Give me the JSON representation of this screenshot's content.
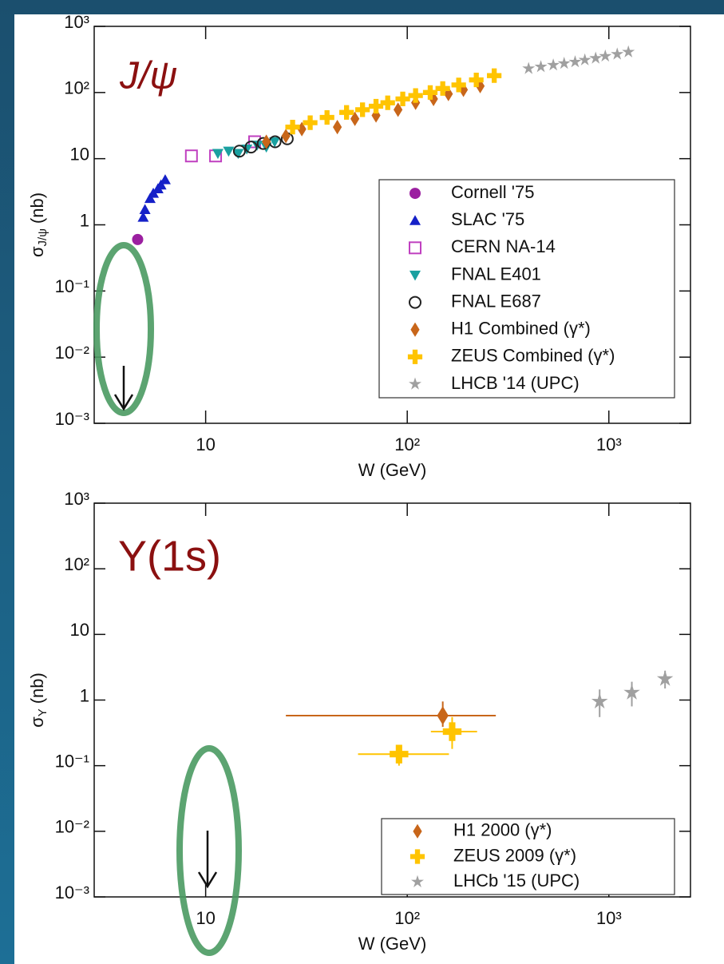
{
  "chart_data": [
    {
      "type": "scatter",
      "title": "J/ψ",
      "xlabel": "W (GeV)",
      "ylabel": "σ",
      "ylabel_subscript": "J/ψ",
      "ylabel_unit": "(nb)",
      "log_x": true,
      "log_y": true,
      "legend": "lower right",
      "xlim": [
        2.8,
        2540
      ],
      "ylim": [
        0.001,
        1000
      ],
      "xticks": [
        10,
        {
          "value": 100,
          "label": "10²"
        },
        {
          "value": 1000,
          "label": "10³"
        }
      ],
      "yticks": [
        {
          "value": 0.001,
          "label": "10⁻³"
        },
        {
          "value": 0.01,
          "label": "10⁻²"
        },
        {
          "value": 0.1,
          "label": "10⁻¹"
        },
        1,
        10,
        {
          "value": 100,
          "label": "10²"
        },
        {
          "value": 1000,
          "label": "10³"
        }
      ],
      "series": [
        {
          "name": "Cornell '75",
          "color": "#9b1fa0",
          "marker": "circle",
          "x": [
            4.6
          ],
          "values": [
            0.6
          ]
        },
        {
          "name": "SLAC '75",
          "color": "#1520c8",
          "marker": "triangle-up",
          "x": [
            4.9,
            5.0,
            5.3,
            5.5,
            5.8,
            6.0,
            6.3
          ],
          "values": [
            1.3,
            1.7,
            2.5,
            3.0,
            3.5,
            4.0,
            4.8
          ]
        },
        {
          "name": "CERN NA-14",
          "color": "#c040c0",
          "marker": "square-open",
          "x": [
            8.5,
            11.2,
            17.5
          ],
          "values": [
            11,
            11,
            18
          ]
        },
        {
          "name": "FNAL E401",
          "color": "#1aa0a0",
          "marker": "triangle-down",
          "x": [
            11.5,
            13,
            14.5,
            16,
            18,
            20,
            22
          ],
          "values": [
            12,
            13,
            12,
            14,
            16,
            15,
            18
          ]
        },
        {
          "name": "FNAL E687",
          "color": "#222222",
          "marker": "circle-open",
          "x": [
            14.7,
            16.8,
            19.3,
            22.1,
            25.4
          ],
          "values": [
            13,
            15,
            17,
            18,
            20
          ]
        },
        {
          "name": "H1 Combined (γ*)",
          "color": "#c8661a",
          "marker": "diamond",
          "x": [
            20,
            25,
            30,
            45,
            55,
            70,
            90,
            110,
            135,
            160,
            190,
            230
          ],
          "values": [
            18,
            22,
            28,
            30,
            40,
            45,
            55,
            70,
            80,
            95,
            110,
            125
          ]
        },
        {
          "name": "ZEUS Combined (γ*)",
          "color": "#ffc400",
          "marker": "cross",
          "x": [
            27,
            33,
            40,
            50,
            60,
            70,
            80,
            95,
            110,
            130,
            150,
            180,
            220,
            270
          ],
          "values": [
            30,
            35,
            42,
            50,
            55,
            62,
            70,
            80,
            90,
            100,
            115,
            130,
            155,
            180
          ]
        },
        {
          "name": "LHCB '14 (UPC)",
          "color": "#a0a0a0",
          "marker": "star",
          "x": [
            400,
            460,
            530,
            600,
            680,
            760,
            860,
            960,
            1100,
            1250
          ],
          "values": [
            230,
            245,
            260,
            275,
            290,
            310,
            330,
            355,
            380,
            410
          ]
        }
      ]
    },
    {
      "type": "scatter",
      "title": "Υ(1s)",
      "xlabel": "W (GeV)",
      "ylabel": "σ",
      "ylabel_subscript": "Υ",
      "ylabel_unit": "(nb)",
      "log_x": true,
      "log_y": true,
      "legend": "lower right",
      "xlim": [
        2.8,
        2540
      ],
      "ylim": [
        0.001,
        1000
      ],
      "xticks": [
        10,
        {
          "value": 100,
          "label": "10²"
        },
        {
          "value": 1000,
          "label": "10³"
        }
      ],
      "yticks": [
        {
          "value": 0.001,
          "label": "10⁻³"
        },
        {
          "value": 0.01,
          "label": "10⁻²"
        },
        {
          "value": 0.1,
          "label": "10⁻¹"
        },
        1,
        10,
        {
          "value": 100,
          "label": "10²"
        },
        {
          "value": 1000,
          "label": "10³"
        }
      ],
      "series": [
        {
          "name": "H1 2000 (γ*)",
          "color": "#c8661a",
          "marker": "diamond",
          "x": [
            150
          ],
          "values": [
            0.58
          ],
          "x_low": [
            25
          ],
          "x_high": [
            275
          ],
          "y_low": [
            0.39
          ],
          "y_high": [
            0.95
          ]
        },
        {
          "name": "ZEUS 2009 (γ*)",
          "color": "#ffc400",
          "marker": "cross",
          "x": [
            91,
            167
          ],
          "values": [
            0.15,
            0.33
          ],
          "x_low": [
            57,
            131
          ],
          "x_high": [
            161,
            222
          ],
          "y_low": [
            0.1,
            0.18
          ],
          "y_high": [
            0.2,
            0.55
          ]
        },
        {
          "name": "LHCb '15 (UPC)",
          "color": "#a0a0a0",
          "marker": "star",
          "x": [
            900,
            1300,
            1900
          ],
          "values": [
            0.95,
            1.3,
            2.1
          ],
          "x_low": [
            900,
            1300,
            1900
          ],
          "x_high": [
            900,
            1300,
            1900
          ],
          "y_low": [
            0.55,
            0.8,
            1.5
          ],
          "y_high": [
            1.45,
            1.9,
            2.8
          ]
        }
      ]
    }
  ]
}
